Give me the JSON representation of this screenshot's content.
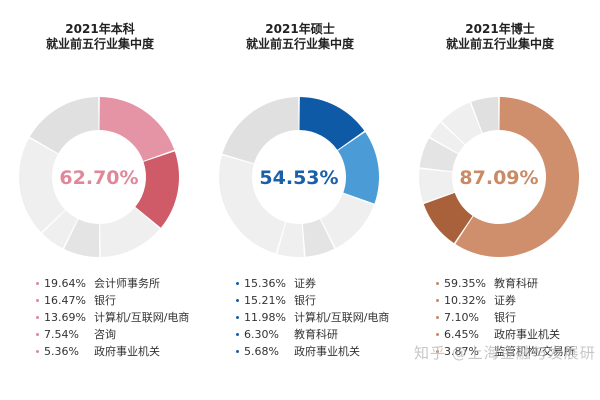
{
  "watermark": "知乎 @上海金融与发展研",
  "chart_data": [
    {
      "type": "pie",
      "title_lines": [
        "2021年本科",
        "就业前五行业集中度"
      ],
      "center_label": "62.70%",
      "accent": "#e0889a",
      "colors": [
        "#e594a6",
        "#cf5a68",
        "#efefef",
        "#e4e4e4",
        "#efefef"
      ],
      "rest_colors": [
        "#efefef",
        "#e0e0e0"
      ],
      "slices": [
        {
          "label": "会计师事务所",
          "value": 19.64,
          "display": "19.64%"
        },
        {
          "label": "银行",
          "value": 16.47,
          "display": "16.47%"
        },
        {
          "label": "计算机/互联网/电商",
          "value": 13.69,
          "display": "13.69%"
        },
        {
          "label": "咨询",
          "value": 7.54,
          "display": "7.54%"
        },
        {
          "label": "政府事业机关",
          "value": 5.36,
          "display": "5.36%"
        }
      ]
    },
    {
      "type": "pie",
      "title_lines": [
        "2021年硕士",
        "就业前五行业集中度"
      ],
      "center_label": "54.53%",
      "accent": "#1a5fa8",
      "colors": [
        "#0f5aa6",
        "#4b9bd6",
        "#efefef",
        "#e4e4e4",
        "#efefef"
      ],
      "rest_colors": [
        "#efefef",
        "#e0e0e0"
      ],
      "slices": [
        {
          "label": "证券",
          "value": 15.36,
          "display": "15.36%"
        },
        {
          "label": "银行",
          "value": 15.21,
          "display": "15.21%"
        },
        {
          "label": "计算机/互联网/电商",
          "value": 11.98,
          "display": "11.98%"
        },
        {
          "label": "教育科研",
          "value": 6.3,
          "display": "6.30%"
        },
        {
          "label": "政府事业机关",
          "value": 5.68,
          "display": "5.68%"
        }
      ]
    },
    {
      "type": "pie",
      "title_lines": [
        "2021年博士",
        "就业前五行业集中度"
      ],
      "center_label": "87.09%",
      "accent": "#c98a66",
      "colors": [
        "#cf8e6c",
        "#a8613a",
        "#efefef",
        "#e4e4e4",
        "#efefef"
      ],
      "rest_colors": [
        "#efefef",
        "#e0e0e0"
      ],
      "slices": [
        {
          "label": "教育科研",
          "value": 59.35,
          "display": "59.35%"
        },
        {
          "label": "证券",
          "value": 10.32,
          "display": "10.32%"
        },
        {
          "label": "银行",
          "value": 7.1,
          "display": "7.10%"
        },
        {
          "label": "政府事业机关",
          "value": 6.45,
          "display": "6.45%"
        },
        {
          "label": "监管机构/交易所",
          "value": 3.87,
          "display": "3.87%"
        }
      ]
    }
  ]
}
